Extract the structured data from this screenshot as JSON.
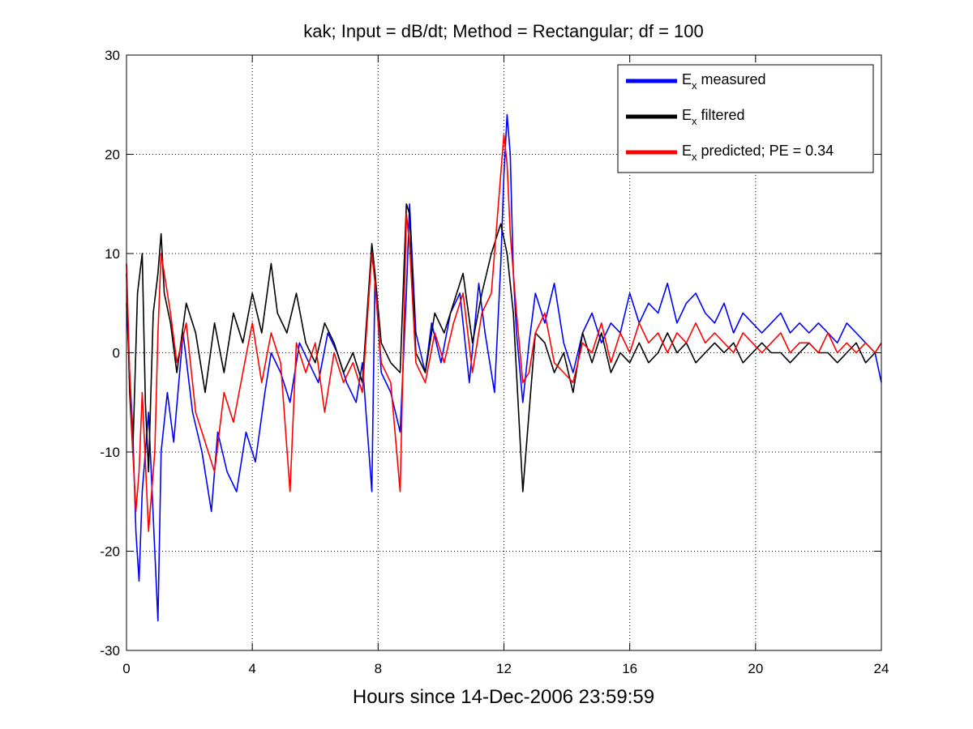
{
  "chart_data": {
    "type": "line",
    "title": "kak; Input = dB/dt; Method = Rectangular; df = 100",
    "xlabel": "Hours since 14-Dec-2006 23:59:59",
    "ylabel": "",
    "xlim": [
      0,
      24
    ],
    "ylim": [
      -30,
      30
    ],
    "xticks": [
      0,
      4,
      8,
      12,
      16,
      20,
      24
    ],
    "yticks": [
      -30,
      -20,
      -10,
      0,
      10,
      20,
      30
    ],
    "grid": true,
    "legend_position": "top-right",
    "legend": [
      {
        "main": "E",
        "sub": "x",
        "rest": " measured"
      },
      {
        "main": "E",
        "sub": "x",
        "rest": " filtered"
      },
      {
        "main": "E",
        "sub": "x",
        "rest": " predicted; PE = 0.34"
      }
    ],
    "colors": {
      "measured": "#0000ff",
      "filtered": "#000000",
      "predicted": "#ff0000"
    },
    "series": [
      {
        "name": "E_x measured",
        "key": "measured",
        "x": [
          0,
          0.1,
          0.2,
          0.3,
          0.4,
          0.5,
          0.7,
          0.9,
          1.0,
          1.1,
          1.3,
          1.5,
          1.8,
          2.1,
          2.4,
          2.7,
          2.9,
          3.2,
          3.5,
          3.8,
          4.1,
          4.4,
          4.6,
          4.9,
          5.2,
          5.5,
          5.8,
          6.1,
          6.4,
          6.7,
          7.0,
          7.3,
          7.5,
          7.8,
          7.9,
          8.1,
          8.4,
          8.7,
          8.9,
          9.0,
          9.2,
          9.5,
          9.7,
          10.0,
          10.3,
          10.6,
          10.9,
          11.2,
          11.4,
          11.7,
          11.9,
          12.0,
          12.1,
          12.2,
          12.3,
          12.4,
          12.6,
          12.8,
          13.0,
          13.3,
          13.6,
          13.9,
          14.2,
          14.5,
          14.8,
          15.1,
          15.4,
          15.7,
          16.0,
          16.3,
          16.6,
          16.9,
          17.2,
          17.5,
          17.8,
          18.1,
          18.4,
          18.7,
          19.0,
          19.3,
          19.6,
          19.9,
          20.2,
          20.5,
          20.8,
          21.1,
          21.4,
          21.7,
          22.0,
          22.3,
          22.6,
          22.9,
          23.2,
          23.5,
          23.8,
          24.0
        ],
        "y": [
          5,
          -2,
          -8,
          -18,
          -23,
          -14,
          -6,
          -20,
          -27,
          -10,
          -4,
          -9,
          2,
          -6,
          -10,
          -16,
          -8,
          -12,
          -14,
          -8,
          -11,
          -4,
          0,
          -2,
          -5,
          1,
          -1,
          -3,
          2,
          0,
          -3,
          -5,
          -1,
          -14,
          8,
          -2,
          -4,
          -8,
          6,
          15,
          2,
          -2,
          3,
          -1,
          4,
          6,
          -3,
          7,
          2,
          -4,
          9,
          18,
          24,
          20,
          8,
          2,
          -5,
          1,
          6,
          3,
          7,
          1,
          -2,
          2,
          4,
          1,
          3,
          2,
          6,
          3,
          5,
          4,
          7,
          3,
          5,
          6,
          4,
          3,
          5,
          2,
          4,
          3,
          2,
          3,
          4,
          2,
          3,
          2,
          3,
          2,
          1,
          3,
          2,
          1,
          0,
          -3
        ]
      },
      {
        "name": "E_x filtered",
        "key": "filtered",
        "x": [
          0,
          0.1,
          0.2,
          0.35,
          0.5,
          0.6,
          0.7,
          0.85,
          1.0,
          1.1,
          1.2,
          1.4,
          1.6,
          1.9,
          2.2,
          2.5,
          2.8,
          3.1,
          3.4,
          3.7,
          4.0,
          4.3,
          4.6,
          4.8,
          5.1,
          5.4,
          5.7,
          6.0,
          6.3,
          6.6,
          6.9,
          7.2,
          7.5,
          7.8,
          7.9,
          8.1,
          8.4,
          8.7,
          8.9,
          9.0,
          9.2,
          9.5,
          9.8,
          10.1,
          10.4,
          10.7,
          11.0,
          11.3,
          11.6,
          11.9,
          12.1,
          12.3,
          12.5,
          12.6,
          12.8,
          13.0,
          13.3,
          13.6,
          13.9,
          14.2,
          14.5,
          14.8,
          15.1,
          15.4,
          15.7,
          16.0,
          16.3,
          16.6,
          16.9,
          17.2,
          17.5,
          17.8,
          18.1,
          18.4,
          18.7,
          19.0,
          19.3,
          19.6,
          19.9,
          20.2,
          20.5,
          20.8,
          21.1,
          21.4,
          21.7,
          22.0,
          22.3,
          22.6,
          22.9,
          23.2,
          23.5,
          23.8,
          24.0
        ],
        "y": [
          8,
          -4,
          -10,
          6,
          10,
          -5,
          -12,
          4,
          8,
          12,
          6,
          3,
          -2,
          5,
          2,
          -4,
          3,
          -2,
          4,
          1,
          6,
          2,
          9,
          4,
          2,
          6,
          1,
          -1,
          3,
          1,
          -2,
          0,
          -3,
          11,
          8,
          1,
          -1,
          -2,
          15,
          14,
          0,
          -2,
          4,
          2,
          5,
          8,
          1,
          6,
          10,
          13,
          10,
          4,
          -8,
          -14,
          -6,
          2,
          1,
          -2,
          0,
          -4,
          2,
          -1,
          2,
          -2,
          0,
          -1,
          1,
          -1,
          0,
          2,
          0,
          1,
          -1,
          0,
          1,
          0,
          1,
          -1,
          0,
          1,
          0,
          0,
          -1,
          0,
          1,
          0,
          0,
          -1,
          0,
          1,
          -1,
          0,
          1
        ]
      },
      {
        "name": "E_x predicted; PE = 0.34",
        "key": "predicted",
        "x": [
          0,
          0.1,
          0.2,
          0.3,
          0.4,
          0.5,
          0.7,
          0.9,
          1.0,
          1.1,
          1.2,
          1.4,
          1.6,
          1.9,
          2.2,
          2.5,
          2.8,
          3.1,
          3.4,
          3.7,
          4.0,
          4.3,
          4.6,
          4.9,
          5.2,
          5.4,
          5.7,
          6.0,
          6.3,
          6.6,
          6.9,
          7.2,
          7.5,
          7.8,
          7.9,
          8.1,
          8.4,
          8.7,
          8.9,
          9.0,
          9.2,
          9.5,
          9.8,
          10.1,
          10.4,
          10.7,
          11.0,
          11.3,
          11.6,
          11.9,
          12.0,
          12.1,
          12.2,
          12.4,
          12.6,
          12.8,
          13.0,
          13.3,
          13.6,
          13.9,
          14.2,
          14.5,
          14.8,
          15.1,
          15.4,
          15.7,
          16.0,
          16.3,
          16.6,
          16.9,
          17.2,
          17.5,
          17.8,
          18.1,
          18.4,
          18.7,
          19.0,
          19.3,
          19.6,
          19.9,
          20.2,
          20.5,
          20.8,
          21.1,
          21.4,
          21.7,
          22.0,
          22.3,
          22.6,
          22.9,
          23.2,
          23.5,
          23.8,
          24.0
        ],
        "y": [
          9,
          -2,
          -10,
          -16,
          -12,
          -4,
          -18,
          -10,
          2,
          10,
          8,
          4,
          -1,
          3,
          -6,
          -9,
          -12,
          -4,
          -7,
          -2,
          3,
          -3,
          2,
          -1,
          -14,
          1,
          -2,
          1,
          -6,
          0,
          -3,
          -1,
          -4,
          10,
          7,
          -1,
          -3,
          -14,
          14,
          11,
          -1,
          -3,
          2,
          -1,
          3,
          6,
          -2,
          4,
          6,
          18,
          22,
          19,
          12,
          4,
          -3,
          -2,
          2,
          4,
          -1,
          -2,
          -3,
          1,
          0,
          3,
          -1,
          2,
          0,
          3,
          1,
          2,
          0,
          2,
          1,
          3,
          1,
          2,
          1,
          0,
          2,
          1,
          0,
          1,
          2,
          0,
          1,
          1,
          0,
          2,
          0,
          1,
          0,
          1,
          0,
          1
        ]
      }
    ]
  }
}
